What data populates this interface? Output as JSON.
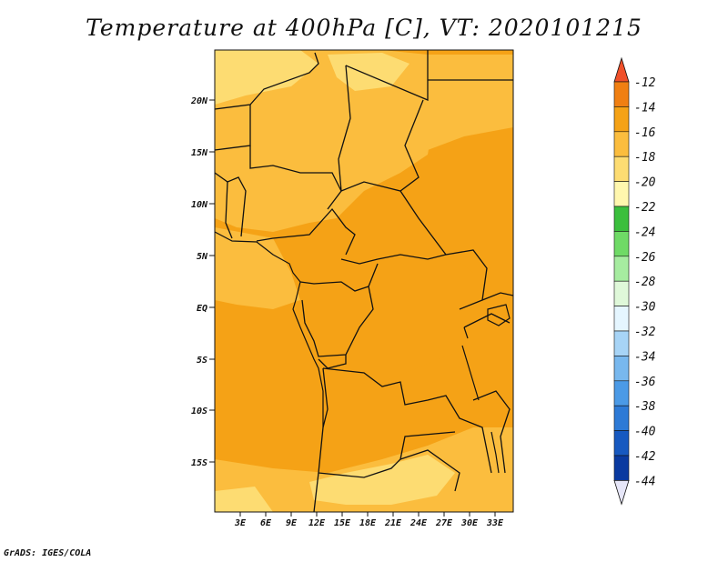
{
  "title": "Temperature at 400hPa [C], VT: 2020101215",
  "credit": "GrADS: IGES/COLA",
  "map": {
    "lat_labels": [
      "20N",
      "15N",
      "10N",
      "5N",
      "EQ",
      "5S",
      "10S",
      "15S"
    ],
    "lon_labels": [
      "3E",
      "6E",
      "9E",
      "12E",
      "15E",
      "18E",
      "21E",
      "24E",
      "27E",
      "30E",
      "33E"
    ]
  },
  "colorbar": {
    "labels": [
      "-12",
      "-14",
      "-16",
      "-18",
      "-20",
      "-22",
      "-24",
      "-26",
      "-28",
      "-30",
      "-32",
      "-34",
      "-36",
      "-38",
      "-40",
      "-42",
      "-44"
    ],
    "colors": {
      "above_-12": "#f0502a",
      "-14_-12": "#f07f12",
      "-16_-14": "#f5a216",
      "-18_-16": "#fbbd3e",
      "-20_-18": "#fddc72",
      "-22_-20": "#fff7ae",
      "-24_-22": "#3bbf3d",
      "-26_-24": "#6fda66",
      "-28_-26": "#a6eca0",
      "-30_-28": "#dff8d9",
      "-32_-30": "#e5f6ff",
      "-34_-32": "#a7d4f6",
      "-36_-34": "#78b8ee",
      "-38_-36": "#4b9ae6",
      "-40_-38": "#2d7ad6",
      "-42_-40": "#1759c0",
      "-44_-42": "#0a3aa0",
      "below_-44": "#0a1a70"
    },
    "low_end_color": "#e6e6f8"
  }
}
